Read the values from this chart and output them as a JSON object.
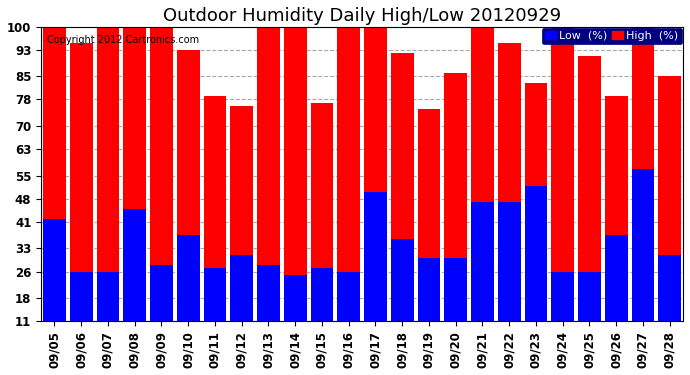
{
  "title": "Outdoor Humidity Daily High/Low 20120929",
  "copyright": "Copyright 2012 Cartronics.com",
  "categories": [
    "09/05",
    "09/06",
    "09/07",
    "09/08",
    "09/09",
    "09/10",
    "09/11",
    "09/12",
    "09/13",
    "09/14",
    "09/15",
    "09/16",
    "09/17",
    "09/18",
    "09/19",
    "09/20",
    "09/21",
    "09/22",
    "09/23",
    "09/24",
    "09/25",
    "09/26",
    "09/27",
    "09/28"
  ],
  "high": [
    100,
    95,
    100,
    100,
    100,
    93,
    79,
    76,
    100,
    100,
    77,
    100,
    100,
    92,
    75,
    86,
    100,
    95,
    83,
    100,
    91,
    79,
    100,
    85
  ],
  "low": [
    42,
    26,
    26,
    45,
    28,
    37,
    27,
    31,
    28,
    25,
    27,
    26,
    50,
    36,
    30,
    30,
    47,
    47,
    52,
    26,
    26,
    37,
    57,
    31
  ],
  "high_color": "#ff0000",
  "low_color": "#0000ff",
  "bg_color": "#ffffff",
  "plot_bg_color": "#ffffff",
  "grid_color": "#aaaaaa",
  "yticks": [
    11,
    18,
    26,
    33,
    41,
    48,
    55,
    63,
    70,
    78,
    85,
    93,
    100
  ],
  "ymin": 11,
  "ymax": 100,
  "bar_width": 0.85,
  "title_fontsize": 13,
  "tick_fontsize": 8.5,
  "legend_fontsize": 8
}
